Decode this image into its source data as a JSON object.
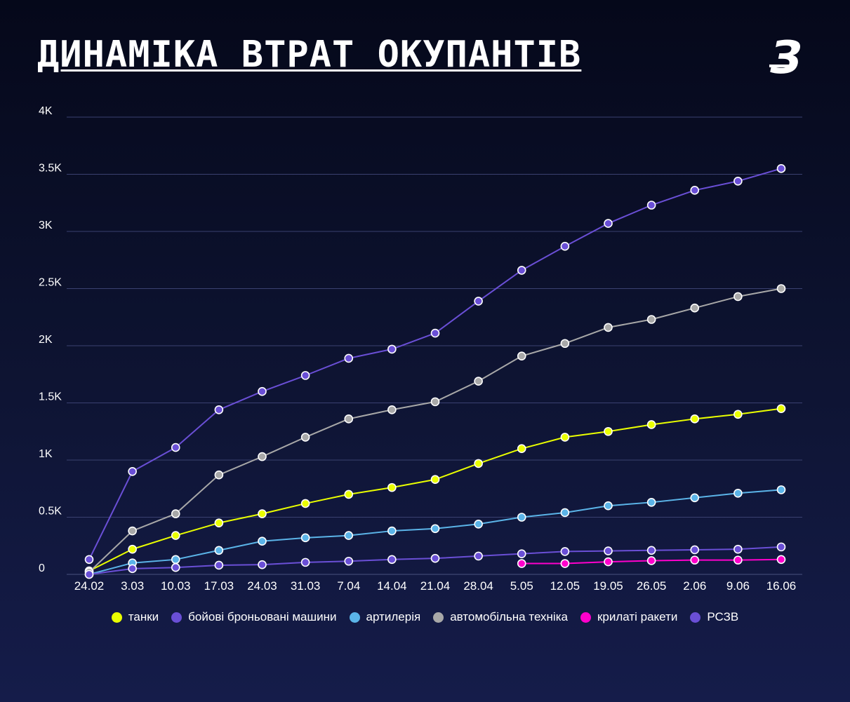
{
  "title": "ДИНАМІКА ВТРАТ ОКУПАНТІВ",
  "logo": {
    "icon": "brand-logo-icon",
    "text": "З",
    "color": "#ffffff"
  },
  "chart_data": {
    "type": "line",
    "categories": [
      "24.02",
      "3.03",
      "10.03",
      "17.03",
      "24.03",
      "31.03",
      "7.04",
      "14.04",
      "21.04",
      "28.04",
      "5.05",
      "12.05",
      "19.05",
      "26.05",
      "2.06",
      "9.06",
      "16.06"
    ],
    "y_ticks": [
      "0",
      "0.5K",
      "1K",
      "1.5K",
      "2K",
      "2.5K",
      "3K",
      "3.5K",
      "4K"
    ],
    "ylim": [
      0,
      4000
    ],
    "grid": true,
    "legend_position": "bottom",
    "series": [
      {
        "name": "танки",
        "color": "#eaff00",
        "values": [
          30,
          220,
          340,
          450,
          530,
          620,
          700,
          760,
          830,
          970,
          1100,
          1200,
          1250,
          1310,
          1360,
          1400,
          1450
        ]
      },
      {
        "name": "бойові броньовані машини",
        "color": "#6a4fd6",
        "values": [
          130,
          900,
          1110,
          1440,
          1600,
          1740,
          1890,
          1970,
          2110,
          2390,
          2660,
          2870,
          3070,
          3230,
          3360,
          3440,
          3550
        ]
      },
      {
        "name": "артилерія",
        "color": "#5bb4e8",
        "values": [
          0,
          100,
          130,
          210,
          290,
          320,
          340,
          380,
          400,
          440,
          500,
          540,
          600,
          630,
          670,
          710,
          740
        ]
      },
      {
        "name": "автомобільна техніка",
        "color": "#a8a8a8",
        "values": [
          20,
          380,
          530,
          870,
          1030,
          1200,
          1360,
          1440,
          1510,
          1690,
          1910,
          2020,
          2160,
          2230,
          2330,
          2430,
          2500
        ]
      },
      {
        "name": "крилаті ракети",
        "color": "#ff00cc",
        "values": [
          null,
          null,
          null,
          null,
          null,
          null,
          null,
          null,
          null,
          null,
          95,
          95,
          110,
          120,
          125,
          125,
          130
        ]
      },
      {
        "name": "РСЗВ",
        "color": "#6a4fd6",
        "values": [
          0,
          50,
          60,
          80,
          85,
          105,
          115,
          130,
          140,
          160,
          180,
          200,
          205,
          210,
          215,
          220,
          240
        ]
      }
    ]
  }
}
